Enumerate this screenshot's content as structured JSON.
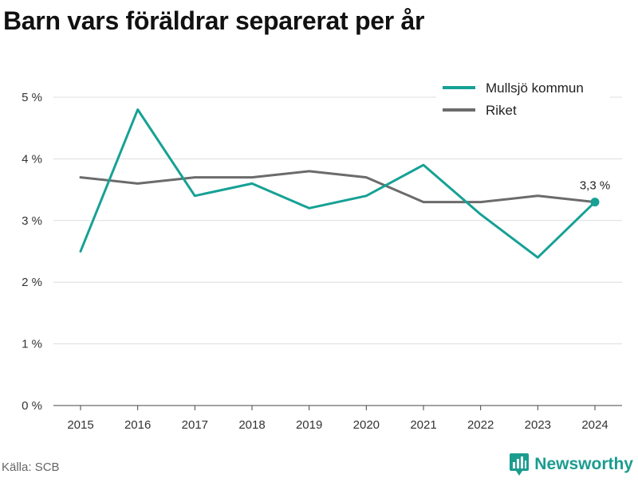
{
  "title": "Barn vars föräldrar separerat per år",
  "source": "Källa: SCB",
  "brand": "Newsworthy",
  "colors": {
    "series1": "#16a195",
    "series2": "#6b6b6b",
    "brand": "#1a9c8f",
    "grid": "#dddddd"
  },
  "chart_data": {
    "type": "line",
    "x": [
      "2015",
      "2016",
      "2017",
      "2018",
      "2019",
      "2020",
      "2021",
      "2022",
      "2023",
      "2024"
    ],
    "series": [
      {
        "name": "Mullsjö kommun",
        "values": [
          2.5,
          4.8,
          3.4,
          3.6,
          3.2,
          3.4,
          3.9,
          3.1,
          2.4,
          3.3
        ]
      },
      {
        "name": "Riket",
        "values": [
          3.7,
          3.6,
          3.7,
          3.7,
          3.8,
          3.7,
          3.3,
          3.3,
          3.4,
          3.3
        ]
      }
    ],
    "yticks": [
      0,
      1,
      2,
      3,
      4,
      5
    ],
    "ytick_labels": [
      "0 %",
      "1 %",
      "2 %",
      "3 %",
      "4 %",
      "5 %"
    ],
    "ylim": [
      0,
      5
    ],
    "grid": true,
    "legend": "top-right",
    "annotation": {
      "series": "Mullsjö kommun",
      "x": "2024",
      "label": "3,3 %"
    }
  }
}
